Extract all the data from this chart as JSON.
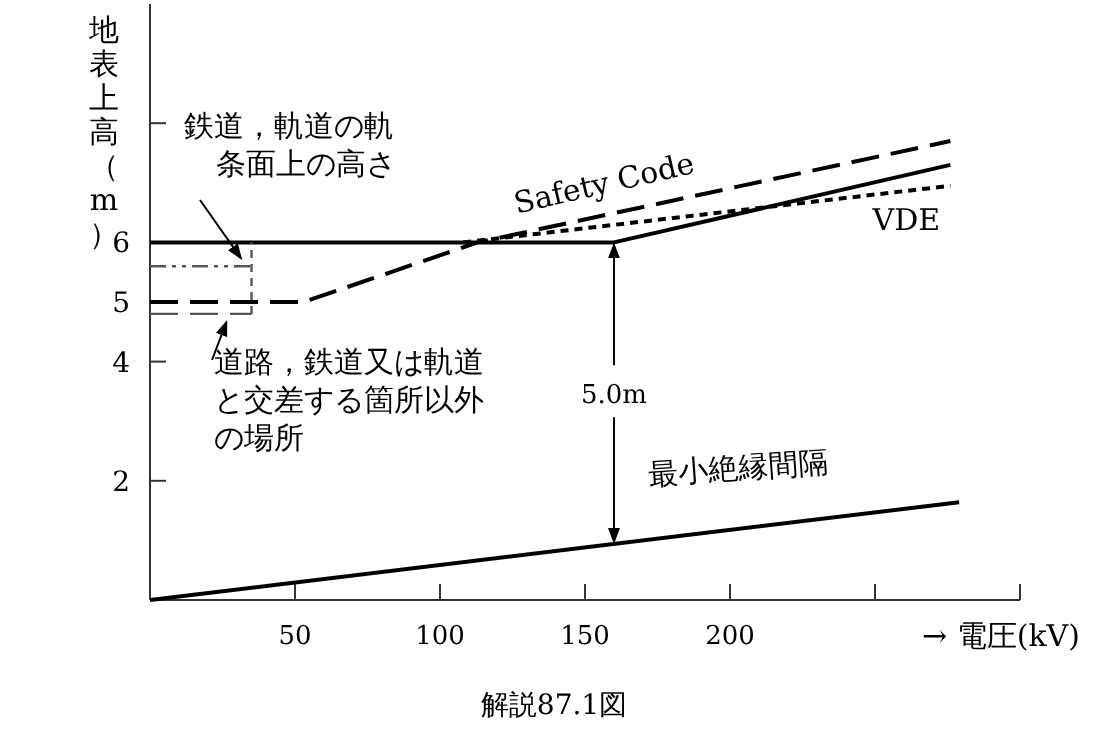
{
  "chart_data": {
    "type": "line",
    "xlabel": "→ 電圧(kV)",
    "ylabel": "地表上高（m）",
    "xlim": [
      0,
      300
    ],
    "ylim": [
      0,
      10
    ],
    "xticks": [
      50,
      100,
      150,
      200,
      {
        "value": 250,
        "label": null
      },
      {
        "value": 300,
        "label": null
      }
    ],
    "yticks": [
      2,
      4,
      5,
      6,
      {
        "value": 8,
        "label": null
      }
    ],
    "grid": false,
    "series": [
      {
        "x": [
          0,
          160,
          276
        ],
        "values": [
          6,
          6,
          7.3
        ],
        "color": "#000000",
        "line_style": "solid"
      },
      {
        "name": "Safety Code",
        "x": [
          0,
          53,
          113,
          276
        ],
        "values": [
          5,
          5,
          6,
          7.7
        ],
        "color": "#000000",
        "line_style": "dashed"
      },
      {
        "name": "VDE",
        "x": [
          108,
          276
        ],
        "values": [
          6,
          6.95
        ],
        "color": "#000000",
        "line_style": "dotted"
      },
      {
        "x": [
          0,
          35
        ],
        "values": [
          5.6,
          5.6
        ],
        "color": "#555555",
        "line_style": "dashdot"
      },
      {
        "x": [
          0,
          35
        ],
        "values": [
          4.8,
          4.8
        ],
        "color": "#555555",
        "line_style": "dashed"
      },
      {
        "x": [
          35,
          35
        ],
        "values": [
          4.8,
          6
        ],
        "color": "#555555",
        "line_style": "dotted"
      },
      {
        "name": "最小絶縁間隔",
        "x": [
          0,
          279
        ],
        "values": [
          0,
          1.64
        ],
        "color": "#000000",
        "line_style": "solid"
      }
    ],
    "annotations": [
      {
        "text": "鉄道，軌道の軌条面上の高さ",
        "x": 30,
        "y": 5.6
      },
      {
        "text": "道路，鉄道又は軌道と交差する箇所以外の場所",
        "x": 25,
        "y": 4.8
      },
      {
        "text": "5.0m",
        "x": 160,
        "y": 6
      },
      "解説87.1図"
    ]
  }
}
